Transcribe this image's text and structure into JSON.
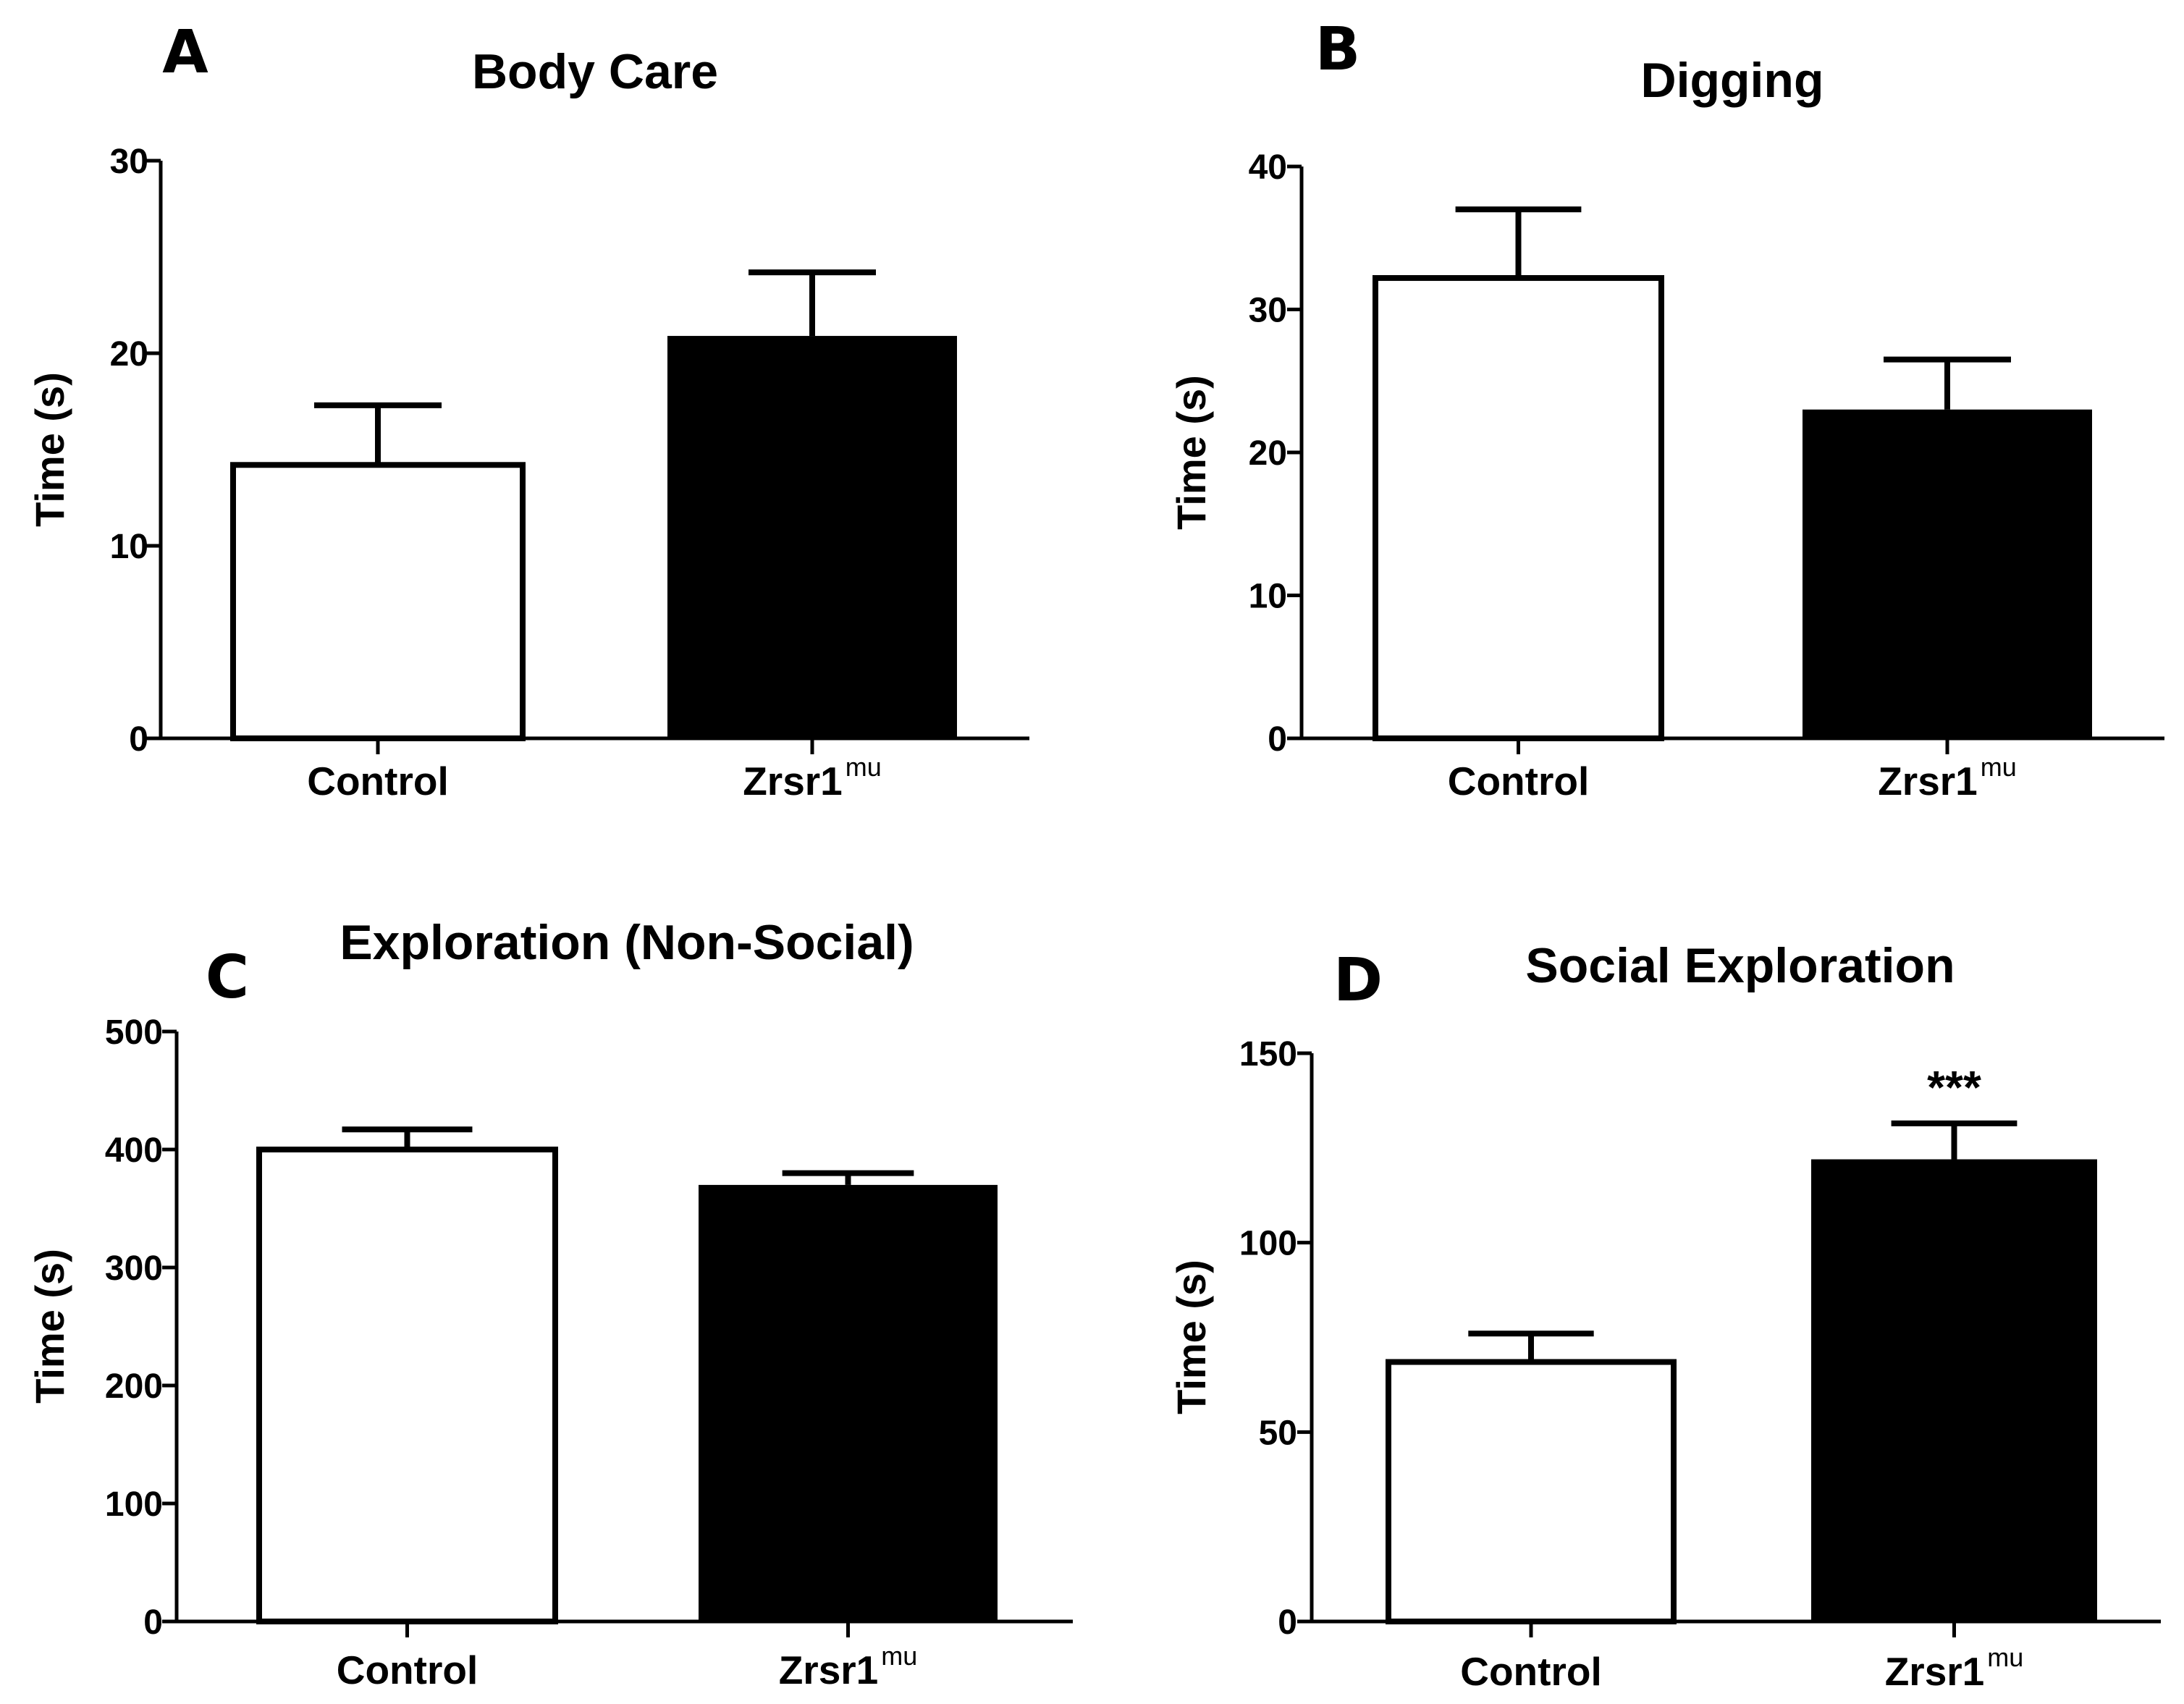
{
  "chart_data": [
    {
      "panel": "A",
      "type": "bar",
      "title": "Body Care",
      "xlabel": "",
      "ylabel": "Time (s)",
      "ylim": [
        0,
        30
      ],
      "yticks": [
        0,
        10,
        20,
        30
      ],
      "tick_labels": [
        "0",
        "10",
        "20",
        "30"
      ],
      "categories": [
        {
          "label": "Control",
          "superscript": ""
        },
        {
          "label": "Zrsr1",
          "superscript": "mu"
        }
      ],
      "values": [
        14.2,
        20.9
      ],
      "errors": [
        3.1,
        3.3
      ],
      "fills": [
        "#ffffff",
        "#000000"
      ],
      "annotations": [
        "",
        ""
      ]
    },
    {
      "panel": "B",
      "type": "bar",
      "title": "Digging",
      "xlabel": "",
      "ylabel": "Time (s)",
      "ylim": [
        0,
        40
      ],
      "yticks": [
        0,
        10,
        20,
        30,
        40
      ],
      "tick_labels": [
        "0",
        "10",
        "20",
        "30",
        "40"
      ],
      "categories": [
        {
          "label": "Control",
          "superscript": ""
        },
        {
          "label": "Zrsr1",
          "superscript": "mu"
        }
      ],
      "values": [
        32.2,
        23.0
      ],
      "errors": [
        4.8,
        3.5
      ],
      "fills": [
        "#ffffff",
        "#000000"
      ],
      "annotations": [
        "",
        ""
      ]
    },
    {
      "panel": "C",
      "type": "bar",
      "title": "Exploration (Non-Social)",
      "xlabel": "",
      "ylabel": "Time (s)",
      "ylim": [
        0,
        500
      ],
      "yticks": [
        0,
        100,
        200,
        300,
        400,
        500
      ],
      "tick_labels": [
        "0",
        "100",
        "200",
        "300",
        "400",
        "500"
      ],
      "categories": [
        {
          "label": "Control",
          "superscript": ""
        },
        {
          "label": "Zrsr1",
          "superscript": "mu"
        }
      ],
      "values": [
        400,
        370
      ],
      "errors": [
        17,
        10
      ],
      "fills": [
        "#ffffff",
        "#000000"
      ],
      "annotations": [
        "",
        ""
      ]
    },
    {
      "panel": "D",
      "type": "bar",
      "title": "Social Exploration",
      "xlabel": "",
      "ylabel": "Time (s)",
      "ylim": [
        0,
        150
      ],
      "yticks": [
        0,
        50,
        100,
        150
      ],
      "tick_labels": [
        "0",
        "50",
        "100",
        "150"
      ],
      "categories": [
        {
          "label": "Control",
          "superscript": ""
        },
        {
          "label": "Zrsr1",
          "superscript": "mu"
        }
      ],
      "values": [
        68.5,
        122
      ],
      "errors": [
        7.5,
        9.5
      ],
      "fills": [
        "#ffffff",
        "#000000"
      ],
      "annotations": [
        "",
        "***"
      ]
    }
  ]
}
